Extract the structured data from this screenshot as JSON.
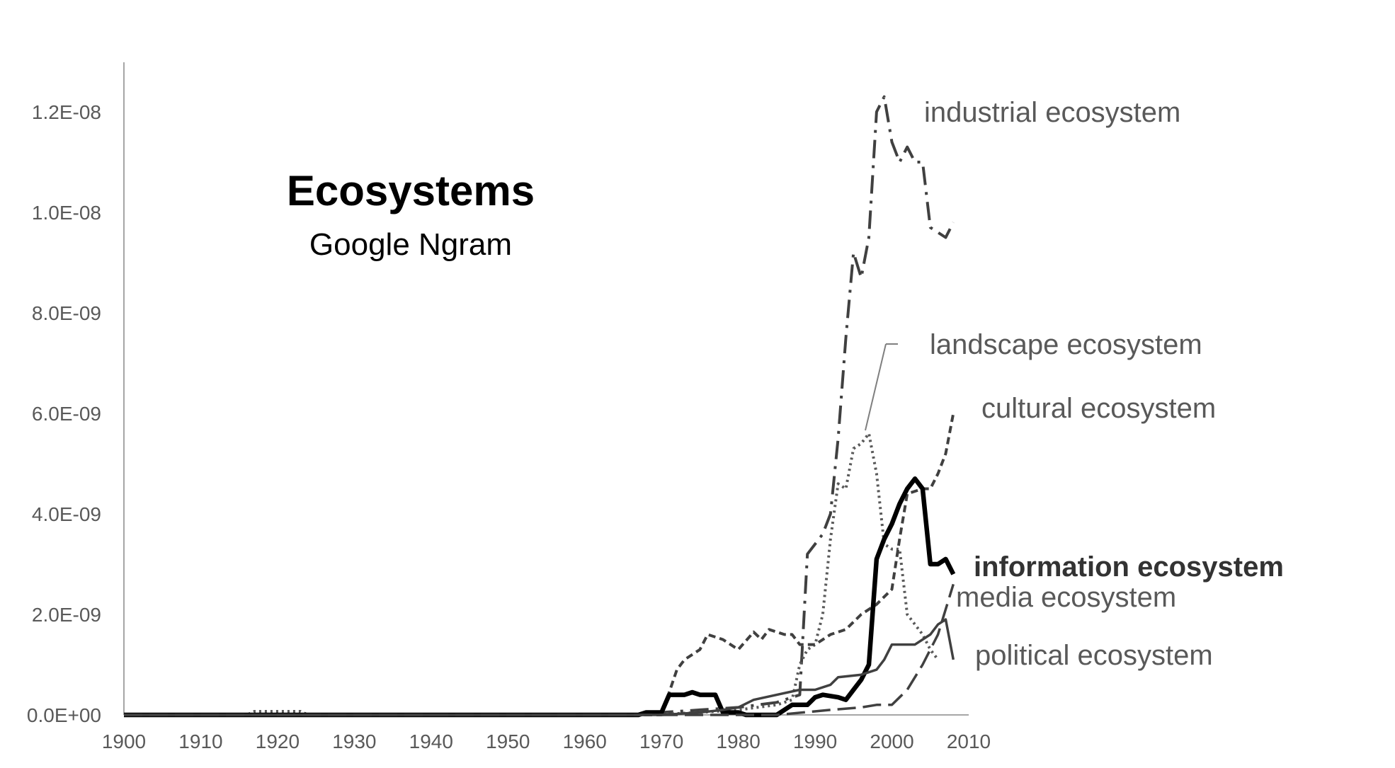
{
  "chart_data": {
    "type": "line",
    "title": "Ecosystems",
    "subtitle": "Google Ngram",
    "xlabel": "",
    "ylabel": "",
    "xlim": [
      1900,
      2010
    ],
    "ylim": [
      0,
      1.2e-08
    ],
    "grid": false,
    "legend": "direct labels at line ends",
    "x_ticks": [
      "1900",
      "1910",
      "1920",
      "1930",
      "1940",
      "1950",
      "1960",
      "1970",
      "1980",
      "1990",
      "2000",
      "2010"
    ],
    "y_ticks": [
      "0.0E+00",
      "2.0E-09",
      "4.0E-09",
      "6.0E-09",
      "8.0E-09",
      "1.0E-08",
      "1.2E-08"
    ],
    "series": [
      {
        "name": "industrial ecosystem",
        "color": "#404040",
        "points": [
          [
            1900,
            0
          ],
          [
            1967,
            0
          ],
          [
            1970,
            5e-11
          ],
          [
            1975,
            1e-10
          ],
          [
            1980,
            1.5e-10
          ],
          [
            1985,
            2.5e-10
          ],
          [
            1988,
            4e-10
          ],
          [
            1989,
            3.2e-09
          ],
          [
            1990,
            3.4e-09
          ],
          [
            1991,
            3.6e-09
          ],
          [
            1992,
            4e-09
          ],
          [
            1993,
            5.5e-09
          ],
          [
            1994,
            7.5e-09
          ],
          [
            1995,
            9.2e-09
          ],
          [
            1996,
            8.7e-09
          ],
          [
            1997,
            9.5e-09
          ],
          [
            1998,
            1.2e-08
          ],
          [
            1999,
            1.23e-08
          ],
          [
            2000,
            1.14e-08
          ],
          [
            2001,
            1.1e-08
          ],
          [
            2002,
            1.13e-08
          ],
          [
            2003,
            1.1e-08
          ],
          [
            2004,
            1.1e-08
          ],
          [
            2005,
            9.7e-09
          ],
          [
            2006,
            9.6e-09
          ],
          [
            2007,
            9.5e-09
          ],
          [
            2008,
            9.8e-09
          ]
        ]
      },
      {
        "name": "landscape ecosystem",
        "color": "#595959",
        "points": [
          [
            1900,
            0
          ],
          [
            1916,
            0
          ],
          [
            1917,
            7e-11
          ],
          [
            1923,
            7e-11
          ],
          [
            1924,
            0
          ],
          [
            1968,
            0
          ],
          [
            1975,
            5e-11
          ],
          [
            1980,
            1e-10
          ],
          [
            1985,
            2e-10
          ],
          [
            1987,
            3e-10
          ],
          [
            1988,
            1e-09
          ],
          [
            1989,
            1.3e-09
          ],
          [
            1990,
            1.4e-09
          ],
          [
            1991,
            2e-09
          ],
          [
            1992,
            3.5e-09
          ],
          [
            1993,
            4.6e-09
          ],
          [
            1994,
            4.5e-09
          ],
          [
            1995,
            5.3e-09
          ],
          [
            1996,
            5.4e-09
          ],
          [
            1997,
            5.6e-09
          ],
          [
            1998,
            4.8e-09
          ],
          [
            1999,
            3.4e-09
          ],
          [
            2000,
            3.3e-09
          ],
          [
            2001,
            3.3e-09
          ],
          [
            2002,
            2e-09
          ],
          [
            2003,
            1.8e-09
          ],
          [
            2004,
            1.6e-09
          ],
          [
            2005,
            1.3e-09
          ],
          [
            2006,
            1.1e-09
          ]
        ]
      },
      {
        "name": "cultural ecosystem",
        "color": "#404040",
        "points": [
          [
            1900,
            0
          ],
          [
            1970,
            0
          ],
          [
            1972,
            9e-10
          ],
          [
            1973,
            1.1e-09
          ],
          [
            1975,
            1.3e-09
          ],
          [
            1976,
            1.6e-09
          ],
          [
            1978,
            1.5e-09
          ],
          [
            1980,
            1.3e-09
          ],
          [
            1982,
            1.65e-09
          ],
          [
            1983,
            1.5e-09
          ],
          [
            1984,
            1.7e-09
          ],
          [
            1986,
            1.6e-09
          ],
          [
            1987,
            1.6e-09
          ],
          [
            1988,
            1.4e-09
          ],
          [
            1990,
            1.4e-09
          ],
          [
            1992,
            1.6e-09
          ],
          [
            1994,
            1.7e-09
          ],
          [
            1996,
            2e-09
          ],
          [
            1998,
            2.2e-09
          ],
          [
            2000,
            2.5e-09
          ],
          [
            2001,
            3.5e-09
          ],
          [
            2002,
            4.4e-09
          ],
          [
            2004,
            4.5e-09
          ],
          [
            2005,
            4.5e-09
          ],
          [
            2006,
            4.8e-09
          ],
          [
            2007,
            5.2e-09
          ],
          [
            2008,
            6e-09
          ]
        ]
      },
      {
        "name": "information ecosystem",
        "color": "#000000",
        "points": [
          [
            1900,
            0
          ],
          [
            1967,
            0
          ],
          [
            1968,
            5e-11
          ],
          [
            1970,
            5e-11
          ],
          [
            1971,
            4e-10
          ],
          [
            1973,
            4e-10
          ],
          [
            1974,
            4.5e-10
          ],
          [
            1975,
            4e-10
          ],
          [
            1977,
            4e-10
          ],
          [
            1978,
            5e-11
          ],
          [
            1980,
            5e-11
          ],
          [
            1981,
            0
          ],
          [
            1985,
            0
          ],
          [
            1987,
            2e-10
          ],
          [
            1989,
            2e-10
          ],
          [
            1990,
            3.5e-10
          ],
          [
            1991,
            4e-10
          ],
          [
            1993,
            3.5e-10
          ],
          [
            1994,
            3e-10
          ],
          [
            1995,
            5e-10
          ],
          [
            1996,
            7e-10
          ],
          [
            1997,
            1e-09
          ],
          [
            1998,
            3.1e-09
          ],
          [
            1999,
            3.5e-09
          ],
          [
            2000,
            3.8e-09
          ],
          [
            2001,
            4.2e-09
          ],
          [
            2002,
            4.5e-09
          ],
          [
            2003,
            4.7e-09
          ],
          [
            2004,
            4.5e-09
          ],
          [
            2005,
            3e-09
          ],
          [
            2006,
            3e-09
          ],
          [
            2007,
            3.1e-09
          ],
          [
            2008,
            2.8e-09
          ]
        ]
      },
      {
        "name": "media ecosystem",
        "color": "#404040",
        "points": [
          [
            1900,
            0
          ],
          [
            1970,
            0
          ],
          [
            1985,
            0
          ],
          [
            1992,
            1e-10
          ],
          [
            1996,
            1.5e-10
          ],
          [
            1998,
            2e-10
          ],
          [
            2000,
            2e-10
          ],
          [
            2002,
            5e-10
          ],
          [
            2004,
            1e-09
          ],
          [
            2006,
            1.6e-09
          ],
          [
            2008,
            2.6e-09
          ]
        ]
      },
      {
        "name": "political ecosystem",
        "color": "#404040",
        "points": [
          [
            1900,
            0
          ],
          [
            1970,
            0
          ],
          [
            1975,
            5e-11
          ],
          [
            1978,
            1e-10
          ],
          [
            1980,
            1.5e-10
          ],
          [
            1982,
            3e-10
          ],
          [
            1985,
            4e-10
          ],
          [
            1988,
            5e-10
          ],
          [
            1990,
            5e-10
          ],
          [
            1992,
            6e-10
          ],
          [
            1993,
            7.5e-10
          ],
          [
            1996,
            8e-10
          ],
          [
            1998,
            9e-10
          ],
          [
            1999,
            1.1e-09
          ],
          [
            2000,
            1.4e-09
          ],
          [
            2003,
            1.4e-09
          ],
          [
            2004,
            1.5e-09
          ],
          [
            2005,
            1.6e-09
          ],
          [
            2006,
            1.8e-09
          ],
          [
            2007,
            1.9e-09
          ],
          [
            2008,
            1.1e-09
          ]
        ]
      }
    ]
  }
}
